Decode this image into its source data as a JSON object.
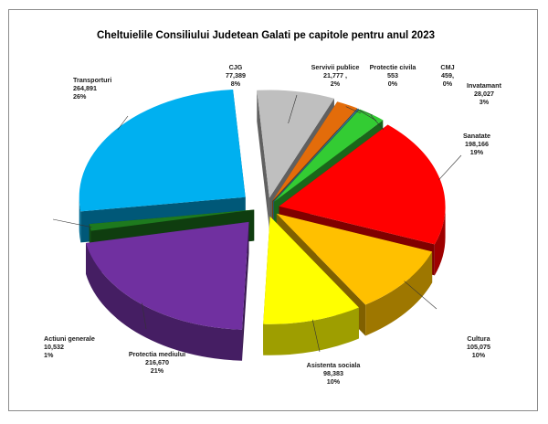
{
  "chart_data": {
    "type": "pie",
    "title": "Cheltuielile Consiliului Judetean Galati pe capitole pentru anul 2023",
    "exploded": true,
    "three_d": true,
    "categories": [
      "CJG",
      "Servivii publice",
      "Protectie civila",
      "CMJ",
      "Invatamant",
      "Sanatate",
      "Cultura",
      "Asistenta sociala",
      "Protectia mediului",
      "Actiuni generale",
      "Transporturi"
    ],
    "values": [
      77389,
      21777,
      553,
      459,
      28027,
      198166,
      105075,
      98383,
      216670,
      10532,
      264891
    ],
    "value_labels": [
      "77,389",
      "21,777 ,",
      "553",
      "459,",
      "28,027",
      "198,166",
      "105,075",
      "98,383",
      "216,670",
      "10,532",
      "264,891"
    ],
    "percent_labels": [
      "8%",
      "2%",
      "0%",
      "0%",
      "3%",
      "19%",
      "10%",
      "10%",
      "21%",
      "1%",
      "26%"
    ],
    "colors": [
      "#bfbfbf",
      "#e36c0a",
      "#1f6fb0",
      "#4bacc6",
      "#33cc33",
      "#ff0000",
      "#ffc000",
      "#ffff00",
      "#7030a0",
      "#1e7a1e",
      "#00b0f0"
    ],
    "legend": "none"
  }
}
